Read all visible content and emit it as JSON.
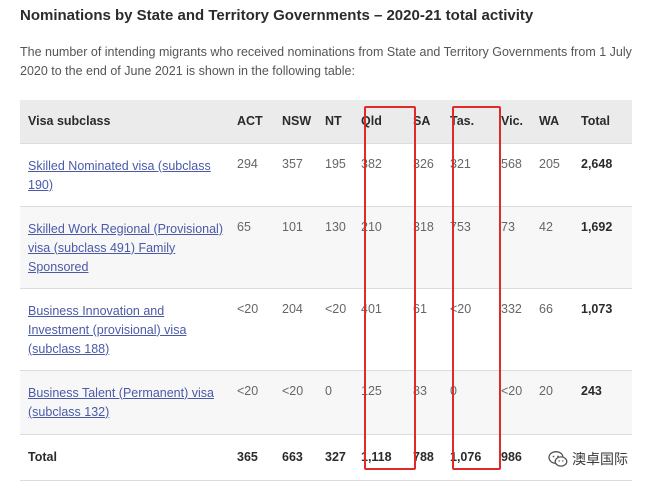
{
  "title": "Nominations by State and Territory Governments – 2020-21 total activity",
  "intro": "The number of intending migrants who received nominations from State and Territory Governments from 1 July 2020 to the end of June 2021 is shown in the following table:",
  "table": {
    "headers": [
      "Visa subclass",
      "ACT",
      "NSW",
      "NT",
      "Qld",
      "SA",
      "Tas.",
      "Vic.",
      "WA",
      "Total"
    ],
    "rows": [
      {
        "visa": "Skilled Nominated visa (subclass 190)",
        "values": [
          "294",
          "357",
          "195",
          "382",
          "326",
          "321",
          "568",
          "205"
        ],
        "total": "2,648"
      },
      {
        "visa": "Skilled Work Regional (Provisional) visa (subclass 491) Family Sponsored",
        "values": [
          "65",
          "101",
          "130",
          "210",
          "318",
          "753",
          "73",
          "42"
        ],
        "total": "1,692"
      },
      {
        "visa": "Business Innovation and Investment (provisional) visa (subclass 188)",
        "values": [
          "<20",
          "204",
          "<20",
          "401",
          "61",
          "<20",
          "332",
          "66"
        ],
        "total": "1,073"
      },
      {
        "visa": "Business Talent (Permanent) visa (subclass 132)",
        "values": [
          "<20",
          "<20",
          "0",
          "125",
          "83",
          "0",
          "<20",
          "20"
        ],
        "total": "243"
      }
    ],
    "total_row": {
      "label": "Total",
      "values": [
        "365",
        "663",
        "327",
        "1,118",
        "788",
        "1,076",
        "986",
        ""
      ]
    }
  },
  "watermark": {
    "text": "澳卓国际",
    "icon": "wechat-icon"
  },
  "colors": {
    "highlight": "#e02a2a",
    "link": "#4a5aa8",
    "header_bg": "#ebebeb"
  }
}
